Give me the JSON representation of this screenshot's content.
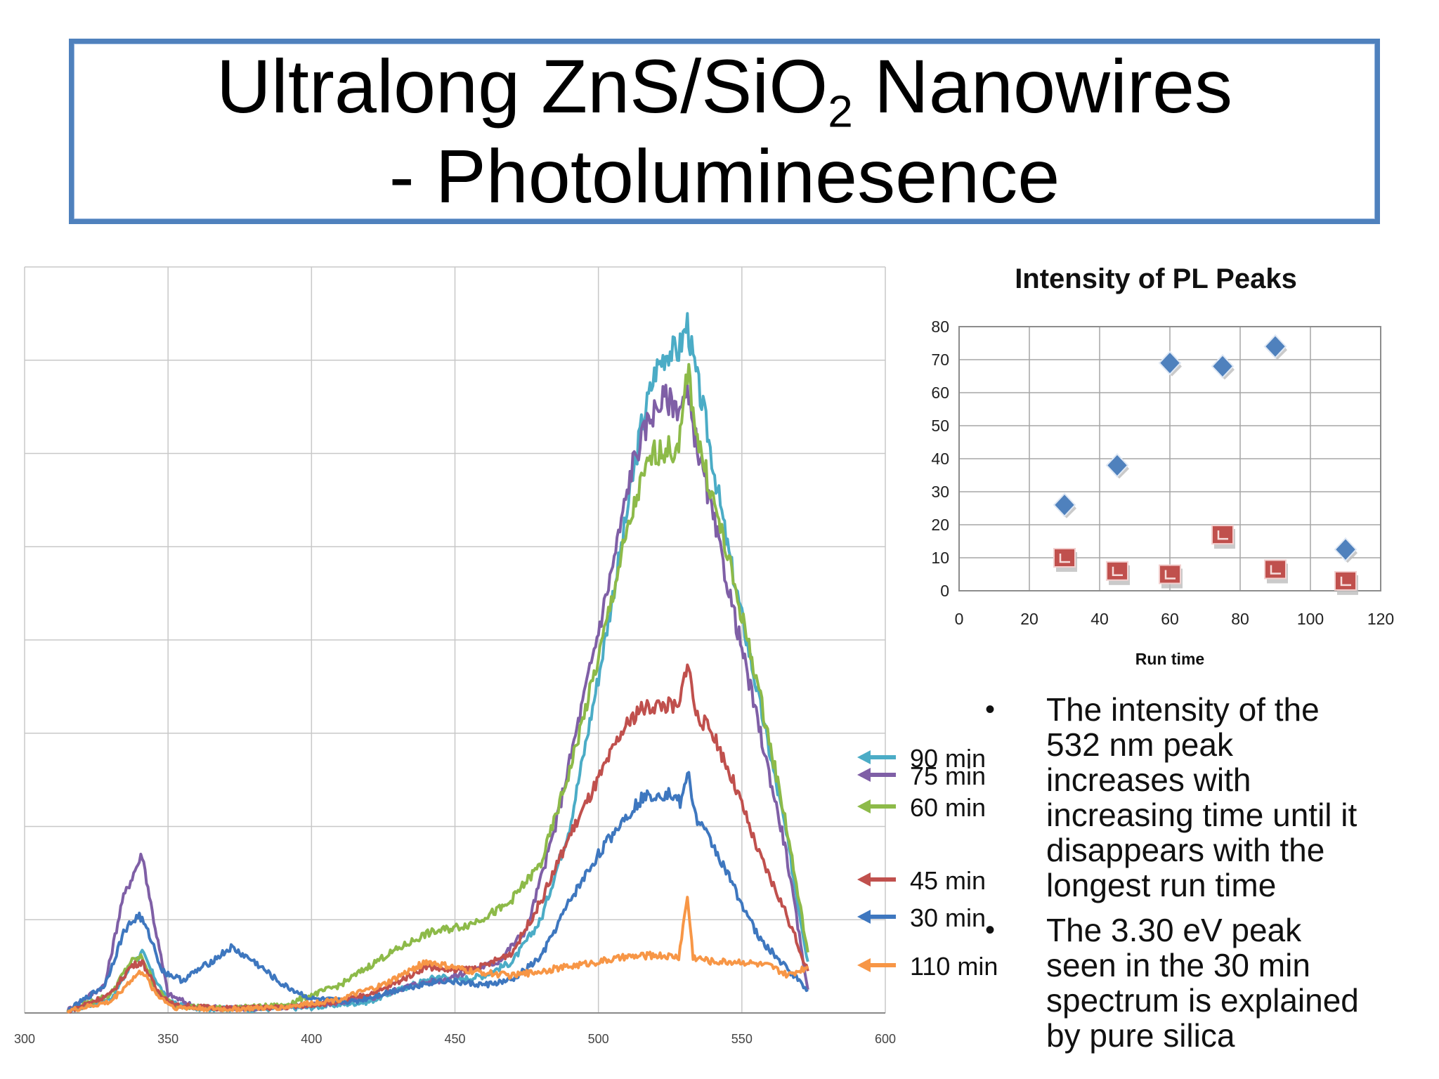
{
  "slide": {
    "title_main": "Ultralong ZnS/SiO",
    "title_sub": "2",
    "title_end": " Nanowires",
    "title_line2": "- Photoluminesence"
  },
  "bullets": [
    "The intensity of the 532 nm peak increases with increasing time until it disappears with the longest run time",
    "The 3.30 eV peak seen in the 30 min spectrum is explained by pure silica"
  ],
  "chart_data": [
    {
      "type": "line",
      "title": "",
      "xlabel": "",
      "ylabel": "",
      "xlim": [
        300,
        600
      ],
      "xticks": [
        300,
        350,
        400,
        450,
        500,
        550,
        600
      ],
      "ylim": [
        0,
        8
      ],
      "grid": true,
      "legend": "right, arrows",
      "series": [
        {
          "name": "90 min",
          "color": "#4bacc6",
          "points": [
            [
              315,
              0.02
            ],
            [
              330,
              0.15
            ],
            [
              337,
              0.5
            ],
            [
              341,
              0.65
            ],
            [
              345,
              0.4
            ],
            [
              350,
              0.12
            ],
            [
              360,
              0.05
            ],
            [
              380,
              0.04
            ],
            [
              400,
              0.06
            ],
            [
              420,
              0.12
            ],
            [
              435,
              0.3
            ],
            [
              445,
              0.4
            ],
            [
              450,
              0.35
            ],
            [
              460,
              0.4
            ],
            [
              470,
              0.55
            ],
            [
              480,
              1.0
            ],
            [
              490,
              2.0
            ],
            [
              500,
              3.6
            ],
            [
              508,
              5.0
            ],
            [
              515,
              6.3
            ],
            [
              520,
              6.9
            ],
            [
              524,
              7.1
            ],
            [
              528,
              7.1
            ],
            [
              531,
              7.4
            ],
            [
              533,
              7.0
            ],
            [
              537,
              6.4
            ],
            [
              545,
              5.0
            ],
            [
              555,
              3.5
            ],
            [
              565,
              2.0
            ],
            [
              573,
              0.55
            ]
          ]
        },
        {
          "name": "75 min",
          "color": "#7f5fa6",
          "points": [
            [
              315,
              0.03
            ],
            [
              328,
              0.3
            ],
            [
              334,
              1.2
            ],
            [
              338,
              1.5
            ],
            [
              341,
              1.7
            ],
            [
              345,
              1.0
            ],
            [
              350,
              0.2
            ],
            [
              360,
              0.06
            ],
            [
              380,
              0.05
            ],
            [
              400,
              0.08
            ],
            [
              420,
              0.15
            ],
            [
              435,
              0.3
            ],
            [
              445,
              0.35
            ],
            [
              455,
              0.45
            ],
            [
              465,
              0.55
            ],
            [
              475,
              0.9
            ],
            [
              485,
              2.0
            ],
            [
              495,
              3.4
            ],
            [
              505,
              4.8
            ],
            [
              512,
              5.9
            ],
            [
              518,
              6.4
            ],
            [
              523,
              6.6
            ],
            [
              528,
              6.5
            ],
            [
              531,
              6.6
            ],
            [
              535,
              6.0
            ],
            [
              545,
              4.6
            ],
            [
              555,
              3.2
            ],
            [
              565,
              1.8
            ],
            [
              573,
              0.25
            ]
          ]
        },
        {
          "name": "60 min",
          "color": "#8dba49",
          "points": [
            [
              315,
              0.02
            ],
            [
              330,
              0.2
            ],
            [
              337,
              0.55
            ],
            [
              341,
              0.6
            ],
            [
              346,
              0.25
            ],
            [
              352,
              0.08
            ],
            [
              370,
              0.05
            ],
            [
              390,
              0.08
            ],
            [
              410,
              0.3
            ],
            [
              425,
              0.6
            ],
            [
              440,
              0.85
            ],
            [
              455,
              0.95
            ],
            [
              468,
              1.15
            ],
            [
              480,
              1.6
            ],
            [
              490,
              2.6
            ],
            [
              500,
              3.8
            ],
            [
              508,
              4.9
            ],
            [
              514,
              5.6
            ],
            [
              519,
              6.0
            ],
            [
              524,
              6.05
            ],
            [
              528,
              6.0
            ],
            [
              531,
              6.9
            ],
            [
              535,
              6.1
            ],
            [
              545,
              4.9
            ],
            [
              555,
              3.6
            ],
            [
              565,
              2.1
            ],
            [
              573,
              0.65
            ]
          ]
        },
        {
          "name": "45 min",
          "color": "#c0504d",
          "points": [
            [
              315,
              0.02
            ],
            [
              330,
              0.2
            ],
            [
              337,
              0.5
            ],
            [
              341,
              0.55
            ],
            [
              346,
              0.25
            ],
            [
              352,
              0.08
            ],
            [
              370,
              0.05
            ],
            [
              390,
              0.06
            ],
            [
              410,
              0.12
            ],
            [
              425,
              0.25
            ],
            [
              440,
              0.5
            ],
            [
              450,
              0.45
            ],
            [
              460,
              0.5
            ],
            [
              470,
              0.65
            ],
            [
              480,
              1.2
            ],
            [
              490,
              1.9
            ],
            [
              500,
              2.5
            ],
            [
              508,
              3.0
            ],
            [
              514,
              3.25
            ],
            [
              520,
              3.3
            ],
            [
              525,
              3.3
            ],
            [
              528,
              3.25
            ],
            [
              531,
              3.8
            ],
            [
              534,
              3.2
            ],
            [
              540,
              3.0
            ],
            [
              548,
              2.4
            ],
            [
              556,
              1.7
            ],
            [
              565,
              1.1
            ],
            [
              573,
              0.45
            ]
          ]
        },
        {
          "name": "30 min",
          "color": "#3e77bf",
          "points": [
            [
              315,
              0.02
            ],
            [
              328,
              0.3
            ],
            [
              335,
              0.9
            ],
            [
              340,
              1.05
            ],
            [
              344,
              0.8
            ],
            [
              348,
              0.45
            ],
            [
              355,
              0.35
            ],
            [
              365,
              0.55
            ],
            [
              372,
              0.7
            ],
            [
              380,
              0.55
            ],
            [
              390,
              0.3
            ],
            [
              400,
              0.15
            ],
            [
              415,
              0.12
            ],
            [
              430,
              0.25
            ],
            [
              445,
              0.35
            ],
            [
              460,
              0.3
            ],
            [
              470,
              0.35
            ],
            [
              480,
              0.6
            ],
            [
              490,
              1.2
            ],
            [
              500,
              1.7
            ],
            [
              508,
              2.05
            ],
            [
              515,
              2.3
            ],
            [
              520,
              2.35
            ],
            [
              525,
              2.35
            ],
            [
              529,
              2.25
            ],
            [
              531,
              2.6
            ],
            [
              534,
              2.1
            ],
            [
              540,
              1.8
            ],
            [
              548,
              1.3
            ],
            [
              556,
              0.8
            ],
            [
              565,
              0.5
            ],
            [
              573,
              0.25
            ]
          ]
        },
        {
          "name": "110 min",
          "color": "#f79646",
          "points": [
            [
              315,
              0.02
            ],
            [
              330,
              0.12
            ],
            [
              337,
              0.35
            ],
            [
              341,
              0.45
            ],
            [
              346,
              0.2
            ],
            [
              352,
              0.06
            ],
            [
              370,
              0.04
            ],
            [
              390,
              0.06
            ],
            [
              410,
              0.15
            ],
            [
              425,
              0.3
            ],
            [
              440,
              0.55
            ],
            [
              455,
              0.45
            ],
            [
              470,
              0.4
            ],
            [
              480,
              0.45
            ],
            [
              490,
              0.5
            ],
            [
              500,
              0.55
            ],
            [
              510,
              0.6
            ],
            [
              520,
              0.62
            ],
            [
              528,
              0.6
            ],
            [
              531,
              1.25
            ],
            [
              533,
              0.6
            ],
            [
              540,
              0.55
            ],
            [
              550,
              0.55
            ],
            [
              560,
              0.5
            ],
            [
              566,
              0.4
            ],
            [
              573,
              0.5
            ]
          ]
        }
      ]
    },
    {
      "type": "scatter",
      "title": "Intensity of PL Peaks",
      "xlabel": "Run time",
      "ylabel": "",
      "xlim": [
        0,
        120
      ],
      "ylim": [
        0,
        80
      ],
      "xticks": [
        0,
        20,
        40,
        60,
        80,
        100,
        120
      ],
      "yticks": [
        0,
        10,
        20,
        30,
        40,
        50,
        60,
        70,
        80
      ],
      "grid": true,
      "series": [
        {
          "marker": "diamond",
          "color": "#4f81bd",
          "points": [
            [
              30,
              26
            ],
            [
              45,
              38
            ],
            [
              60,
              69
            ],
            [
              75,
              68
            ],
            [
              90,
              74
            ],
            [
              110,
              12.5
            ]
          ]
        },
        {
          "marker": "square",
          "color": "#c0504d",
          "points": [
            [
              30,
              10
            ],
            [
              45,
              6
            ],
            [
              60,
              5
            ],
            [
              75,
              17
            ],
            [
              90,
              6.5
            ],
            [
              110,
              3
            ]
          ]
        }
      ]
    }
  ]
}
